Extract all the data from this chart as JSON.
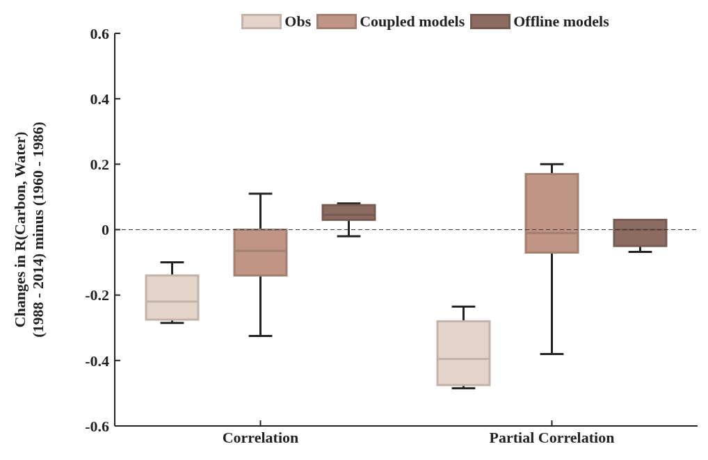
{
  "chart_data": {
    "type": "box",
    "ylabel": "Changes in R(Carbon, Water) (1988 - 2014) minus (1960 - 1986)",
    "categories": [
      "Correlation",
      "Partial Correlation"
    ],
    "ylim": [
      -0.6,
      0.6
    ],
    "yticks": [
      -0.6,
      -0.4,
      -0.2,
      0,
      0.2,
      0.4,
      0.6
    ],
    "grid": false,
    "legend": "top",
    "ref_lines": [
      {
        "axis": "y",
        "value": 0,
        "line_style": "dashed",
        "color": "#333333"
      }
    ],
    "series": [
      {
        "name": "Obs",
        "color": "#e3d3c8",
        "boxes": [
          {
            "low": -0.285,
            "q1": -0.275,
            "median": -0.22,
            "q3": -0.14,
            "high": -0.1
          },
          {
            "low": -0.485,
            "q1": -0.475,
            "median": -0.395,
            "q3": -0.28,
            "high": -0.235
          }
        ]
      },
      {
        "name": "Coupled models",
        "color": "#bf9585",
        "boxes": [
          {
            "low": -0.325,
            "q1": -0.14,
            "median": -0.065,
            "q3": 0.0,
            "high": 0.11
          },
          {
            "low": -0.38,
            "q1": -0.07,
            "median": -0.01,
            "q3": 0.17,
            "high": 0.2
          }
        ]
      },
      {
        "name": "Offline models",
        "color": "#8c6b60",
        "boxes": [
          {
            "low": -0.02,
            "q1": 0.03,
            "median": 0.045,
            "q3": 0.075,
            "high": 0.08
          },
          {
            "low": -0.068,
            "q1": -0.05,
            "median": 0.0,
            "q3": 0.03,
            "high": 0.03
          }
        ]
      }
    ]
  }
}
